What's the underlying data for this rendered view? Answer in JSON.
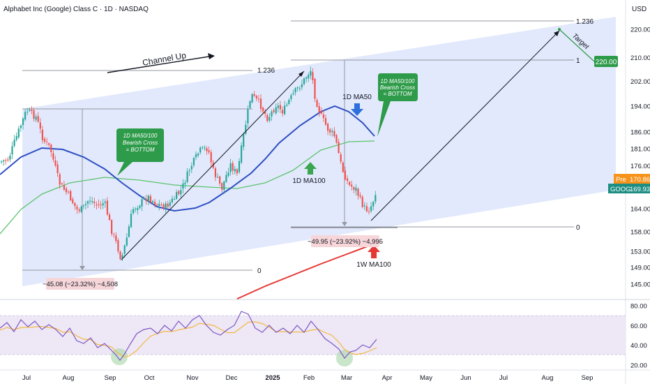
{
  "header": {
    "title": "Alphabet Inc (Google) Class C · 1D · NASDAQ",
    "currency": "USD"
  },
  "colors": {
    "channel_fill": "#dbe3fb",
    "up_candle": "#26a69a",
    "down_candle": "#ef5350",
    "ma50": "#2d4fc3",
    "ma100": "#5cc36e",
    "ma100w": "#e53935",
    "rsi_line": "#7e57c2",
    "rsi_ma": "#f4b942",
    "rsi_band": "#ede7f6",
    "callout_green": "#2e9b4a",
    "measure_box": "#f6d6d9"
  },
  "annotations": {
    "channel_label": "Channel Up",
    "fib_left_top": "1.236",
    "fib_left_zero": "0",
    "fib_right_top": "1.236",
    "fib_right_one": "1",
    "fib_right_zero": "0",
    "target_label": "Target",
    "target_value": "220.00",
    "callout_left": [
      "1D MA50/100",
      "Bearish Cross",
      "= BOTTOM"
    ],
    "callout_right": [
      "1D MA50/100",
      "Bearish Cross",
      "= BOTTOM"
    ],
    "ma50_label": "1D MA50",
    "ma100_label": "1D MA100",
    "ma100w_label": "1W MA100",
    "measure_left": "−45.08 (−23.32%) −4,508",
    "measure_right": "−49.95 (−23.92%) −4,995"
  },
  "price_tags": {
    "pre_label": "Pre",
    "pre_value": "170.86",
    "ticker": "GOOG",
    "last_value": "169.93"
  },
  "chart_data": [
    {
      "type": "candlestick",
      "title": "Alphabet Inc (Google) Class C · 1D · NASDAQ",
      "x_axis": {
        "ticks": [
          "Jul",
          "Aug",
          "Sep",
          "Oct",
          "Nov",
          "Dec",
          "2025",
          "Feb",
          "Mar",
          "Apr",
          "May",
          "Jun",
          "Jul",
          "Aug",
          "Sep"
        ]
      },
      "y_axis": {
        "scale": "log",
        "range": [
          142,
          228
        ],
        "ticks": [
          145.0,
          149.0,
          153.0,
          158.0,
          164.0,
          170.0,
          176.0,
          181.0,
          186.0,
          194.0,
          202.0,
          210.0,
          220.0
        ]
      },
      "series": [
        {
          "name": "GOOG",
          "values_approx_close": [
            {
              "t": "Jul",
              "v": 185
            },
            {
              "t": "Aug",
              "v": 162
            },
            {
              "t": "Sep",
              "v": 150
            },
            {
              "t": "Oct",
              "v": 167
            },
            {
              "t": "Nov",
              "v": 172
            },
            {
              "t": "Dec",
              "v": 193
            },
            {
              "t": "2025",
              "v": 192
            },
            {
              "t": "Feb",
              "v": 206
            },
            {
              "t": "Mar",
              "v": 170
            },
            {
              "t": "Mar",
              "v": 170
            }
          ]
        },
        {
          "name": "1D MA50"
        },
        {
          "name": "1D MA100"
        },
        {
          "name": "1W MA100"
        }
      ]
    },
    {
      "type": "line",
      "title": "",
      "y_axis": {
        "range": [
          20,
          80
        ],
        "ticks": [
          20.0,
          40.0,
          60.0,
          80.0
        ]
      },
      "band": [
        30,
        70
      ]
    }
  ]
}
